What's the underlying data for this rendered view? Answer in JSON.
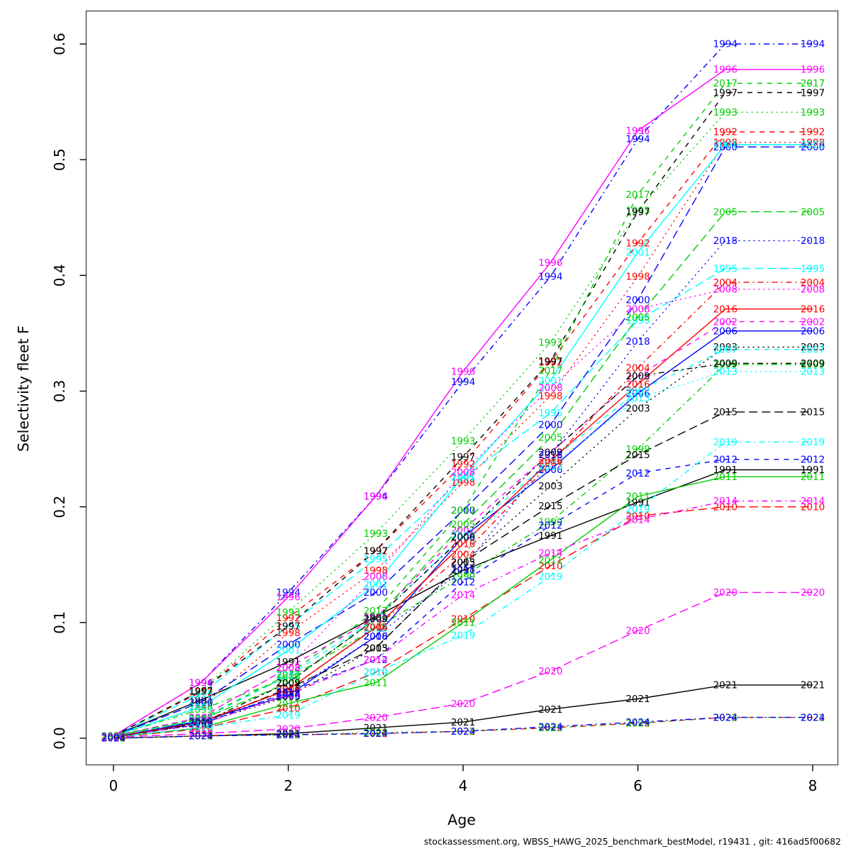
{
  "footer": "stockassessment.org, WBSS_HAWG_2025_benchmark_bestModel, r19431 , git: 416ad5f00682",
  "chart_data": {
    "type": "line",
    "title": "",
    "xlabel": "Age",
    "ylabel": "Selectivity fleet F",
    "x": [
      0,
      1,
      2,
      3,
      4,
      5,
      6,
      7,
      8
    ],
    "xlim": [
      0,
      8
    ],
    "ylim": [
      0,
      0.6
    ],
    "xticks": [
      {
        "v": 0,
        "label": "0"
      },
      {
        "v": 2,
        "label": "2"
      },
      {
        "v": 4,
        "label": "4"
      },
      {
        "v": 6,
        "label": "6"
      },
      {
        "v": 8,
        "label": "8"
      }
    ],
    "yticks": [
      {
        "v": 0.0,
        "label": "0.0"
      },
      {
        "v": 0.1,
        "label": "0.1"
      },
      {
        "v": 0.2,
        "label": "0.2"
      },
      {
        "v": 0.3,
        "label": "0.3"
      },
      {
        "v": 0.4,
        "label": "0.4"
      },
      {
        "v": 0.5,
        "label": "0.5"
      },
      {
        "v": 0.6,
        "label": "0.6"
      }
    ],
    "grid": false,
    "legend_position": "labels-on-lines",
    "point_label_mode": "year-at-each-age",
    "series": [
      {
        "name": "1991",
        "color": "#000000",
        "linetype": "solid",
        "values": [
          0.002,
          0.033,
          0.066,
          0.105,
          0.145,
          0.175,
          0.204,
          0.232,
          0.232
        ]
      },
      {
        "name": "1992",
        "color": "#FF0000",
        "linetype": "dashed",
        "values": [
          0.002,
          0.04,
          0.104,
          0.162,
          0.237,
          0.325,
          0.428,
          0.524,
          0.524
        ]
      },
      {
        "name": "1993",
        "color": "#00CD00",
        "linetype": "dotted",
        "values": [
          0.002,
          0.041,
          0.109,
          0.177,
          0.257,
          0.342,
          0.456,
          0.541,
          0.541
        ]
      },
      {
        "name": "1994",
        "color": "#0000FF",
        "linetype": "dashdot",
        "values": [
          0.002,
          0.048,
          0.126,
          0.209,
          0.308,
          0.399,
          0.518,
          0.6,
          0.6
        ]
      },
      {
        "name": "1995",
        "color": "#00FFFF",
        "linetype": "longdash",
        "values": [
          0.002,
          0.038,
          0.097,
          0.155,
          0.225,
          0.281,
          0.361,
          0.406,
          0.406
        ]
      },
      {
        "name": "1996",
        "color": "#FF00FF",
        "linetype": "solid",
        "values": [
          0.002,
          0.048,
          0.122,
          0.209,
          0.317,
          0.411,
          0.525,
          0.578,
          0.578
        ]
      },
      {
        "name": "1997",
        "color": "#000000",
        "linetype": "dashed",
        "values": [
          0.002,
          0.041,
          0.097,
          0.162,
          0.243,
          0.326,
          0.455,
          0.558,
          0.558
        ]
      },
      {
        "name": "1998",
        "color": "#FF0000",
        "linetype": "dotted",
        "values": [
          0.002,
          0.027,
          0.091,
          0.145,
          0.221,
          0.296,
          0.399,
          0.515,
          0.515
        ]
      },
      {
        "name": "1999",
        "color": "#00CD00",
        "linetype": "dashdot",
        "values": [
          0.002,
          0.025,
          0.052,
          0.095,
          0.14,
          0.187,
          0.25,
          0.323,
          0.323
        ]
      },
      {
        "name": "2000",
        "color": "#0000FF",
        "linetype": "longdash",
        "values": [
          0.002,
          0.031,
          0.081,
          0.126,
          0.197,
          0.271,
          0.379,
          0.511,
          0.511
        ]
      },
      {
        "name": "2001",
        "color": "#00FFFF",
        "linetype": "solid",
        "values": [
          0.002,
          0.027,
          0.076,
          0.133,
          0.226,
          0.309,
          0.42,
          0.513,
          0.513
        ]
      },
      {
        "name": "2002",
        "color": "#FF00FF",
        "linetype": "dashed",
        "values": [
          0.002,
          0.018,
          0.061,
          0.104,
          0.18,
          0.247,
          0.313,
          0.36,
          0.36
        ]
      },
      {
        "name": "2003",
        "color": "#000000",
        "linetype": "dotted",
        "values": [
          0.001,
          0.013,
          0.036,
          0.078,
          0.152,
          0.218,
          0.285,
          0.338,
          0.338
        ]
      },
      {
        "name": "2004",
        "color": "#FF0000",
        "linetype": "dashdot",
        "values": [
          0.001,
          0.014,
          0.042,
          0.096,
          0.159,
          0.238,
          0.32,
          0.394,
          0.394
        ]
      },
      {
        "name": "2005",
        "color": "#00CD00",
        "linetype": "longdash",
        "values": [
          0.002,
          0.016,
          0.048,
          0.103,
          0.185,
          0.26,
          0.364,
          0.455,
          0.455
        ]
      },
      {
        "name": "2006",
        "color": "#0000FF",
        "linetype": "solid",
        "values": [
          0.001,
          0.015,
          0.037,
          0.088,
          0.174,
          0.232,
          0.298,
          0.352,
          0.352
        ]
      },
      {
        "name": "2007",
        "color": "#00FFFF",
        "linetype": "dashed",
        "values": [
          0.002,
          0.016,
          0.054,
          0.103,
          0.175,
          0.24,
          0.3,
          0.336,
          0.336
        ]
      },
      {
        "name": "2008",
        "color": "#FF00FF",
        "linetype": "dotted",
        "values": [
          0.002,
          0.018,
          0.061,
          0.14,
          0.23,
          0.303,
          0.371,
          0.388,
          0.388
        ]
      },
      {
        "name": "2009",
        "color": "#000000",
        "linetype": "dashdot",
        "values": [
          0.001,
          0.013,
          0.048,
          0.103,
          0.174,
          0.247,
          0.313,
          0.324,
          0.324
        ]
      },
      {
        "name": "2010",
        "color": "#FF0000",
        "linetype": "longdash",
        "values": [
          0.001,
          0.008,
          0.026,
          0.057,
          0.103,
          0.149,
          0.192,
          0.2,
          0.2
        ]
      },
      {
        "name": "2011",
        "color": "#00CD00",
        "linetype": "solid",
        "values": [
          0.001,
          0.009,
          0.03,
          0.048,
          0.1,
          0.154,
          0.209,
          0.226,
          0.226
        ]
      },
      {
        "name": "2012",
        "color": "#0000FF",
        "linetype": "dashed",
        "values": [
          0.001,
          0.012,
          0.04,
          0.068,
          0.135,
          0.184,
          0.229,
          0.241,
          0.241
        ]
      },
      {
        "name": "2013",
        "color": "#00FFFF",
        "linetype": "dotted",
        "values": [
          0.001,
          0.013,
          0.042,
          0.095,
          0.168,
          0.235,
          0.294,
          0.317,
          0.317
        ]
      },
      {
        "name": "2014",
        "color": "#FF00FF",
        "linetype": "dashdot",
        "values": [
          0.001,
          0.012,
          0.038,
          0.068,
          0.124,
          0.16,
          0.189,
          0.205,
          0.205
        ]
      },
      {
        "name": "2015",
        "color": "#000000",
        "linetype": "longdash",
        "values": [
          0.001,
          0.013,
          0.043,
          0.078,
          0.152,
          0.201,
          0.245,
          0.282,
          0.282
        ]
      },
      {
        "name": "2016",
        "color": "#FF0000",
        "linetype": "solid",
        "values": [
          0.001,
          0.014,
          0.042,
          0.096,
          0.168,
          0.24,
          0.306,
          0.371,
          0.371
        ]
      },
      {
        "name": "2017",
        "color": "#00CD00",
        "linetype": "dashed",
        "values": [
          0.002,
          0.017,
          0.055,
          0.11,
          0.197,
          0.318,
          0.47,
          0.566,
          0.566
        ]
      },
      {
        "name": "2018",
        "color": "#0000FF",
        "linetype": "dotted",
        "values": [
          0.001,
          0.014,
          0.039,
          0.088,
          0.146,
          0.245,
          0.343,
          0.43,
          0.43
        ]
      },
      {
        "name": "2019",
        "color": "#00FFFF",
        "linetype": "dashdot",
        "values": [
          0.001,
          0.009,
          0.02,
          0.057,
          0.089,
          0.14,
          0.198,
          0.256,
          0.256
        ]
      },
      {
        "name": "2020",
        "color": "#FF00FF",
        "linetype": "longdash",
        "values": [
          0.001,
          0.004,
          0.008,
          0.018,
          0.03,
          0.058,
          0.093,
          0.126,
          0.126
        ]
      },
      {
        "name": "2021",
        "color": "#000000",
        "linetype": "solid",
        "values": [
          0.0,
          0.002,
          0.004,
          0.009,
          0.014,
          0.025,
          0.034,
          0.046,
          0.046
        ]
      },
      {
        "name": "2022",
        "color": "#FF0000",
        "linetype": "dashed",
        "values": [
          0.0,
          0.002,
          0.003,
          0.004,
          0.006,
          0.009,
          0.013,
          0.018,
          0.018
        ]
      },
      {
        "name": "2023",
        "color": "#00CD00",
        "linetype": "dotted",
        "values": [
          0.0,
          0.002,
          0.003,
          0.005,
          0.006,
          0.009,
          0.013,
          0.018,
          0.018
        ]
      },
      {
        "name": "2024",
        "color": "#0000FF",
        "linetype": "dashdot",
        "values": [
          0.0,
          0.002,
          0.003,
          0.004,
          0.006,
          0.01,
          0.014,
          0.018,
          0.018
        ]
      }
    ]
  }
}
